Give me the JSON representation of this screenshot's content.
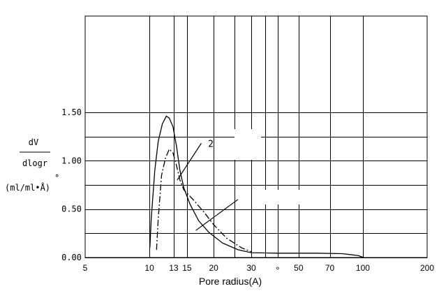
{
  "chart_data": {
    "type": "line",
    "xlabel": "Pore radius(A)",
    "xlabel_ring": "°",
    "ylabel": {
      "numerator": "dV",
      "denominator": "dlogr",
      "unit": "(ml/ml•Å)",
      "unit_ring": "°"
    },
    "x_scale": "log",
    "xlim": [
      5,
      200
    ],
    "ylim": [
      0,
      1.5
    ],
    "x_ticks": [
      {
        "value": 5,
        "label": "5"
      },
      {
        "value": 10,
        "label": "10"
      },
      {
        "value": 13,
        "label": "13"
      },
      {
        "value": 15,
        "label": "15"
      },
      {
        "value": 20,
        "label": "20"
      },
      {
        "value": 30,
        "label": "30"
      },
      {
        "value": 50,
        "label": "50"
      },
      {
        "value": 70,
        "label": "70"
      },
      {
        "value": 100,
        "label": "100"
      },
      {
        "value": 200,
        "label": "200"
      }
    ],
    "y_ticks": [
      {
        "value": 0,
        "label": "0.00"
      },
      {
        "value": 0.5,
        "label": "0.50"
      },
      {
        "value": 1.0,
        "label": "1.00"
      },
      {
        "value": 1.5,
        "label": "1.50"
      }
    ],
    "grid": true,
    "series": [
      {
        "style": "solid",
        "points": [
          [
            10.05,
            0.1
          ],
          [
            10.2,
            0.4
          ],
          [
            10.6,
            0.9
          ],
          [
            11.0,
            1.2
          ],
          [
            11.5,
            1.38
          ],
          [
            12.0,
            1.46
          ],
          [
            12.4,
            1.44
          ],
          [
            12.9,
            1.35
          ],
          [
            13.4,
            1.15
          ],
          [
            13.9,
            0.9
          ],
          [
            14.5,
            0.72
          ],
          [
            15.5,
            0.55
          ],
          [
            17.0,
            0.38
          ],
          [
            19.0,
            0.26
          ],
          [
            22.0,
            0.15
          ],
          [
            26.0,
            0.08
          ],
          [
            30.0,
            0.05
          ],
          [
            40.0,
            0.045
          ],
          [
            60.0,
            0.045
          ],
          [
            80.0,
            0.04
          ],
          [
            95.0,
            0.02
          ],
          [
            101.0,
            0.0
          ]
        ]
      },
      {
        "style": "dash-dot",
        "points": [
          [
            10.8,
            0.08
          ],
          [
            11.0,
            0.4
          ],
          [
            11.4,
            0.85
          ],
          [
            11.9,
            1.03
          ],
          [
            12.4,
            1.12
          ],
          [
            12.9,
            1.08
          ],
          [
            13.4,
            0.95
          ],
          [
            13.9,
            0.8
          ],
          [
            14.5,
            0.7
          ],
          [
            16.0,
            0.6
          ],
          [
            18.0,
            0.47
          ],
          [
            20.0,
            0.34
          ],
          [
            23.0,
            0.2
          ],
          [
            27.0,
            0.1
          ],
          [
            30.0,
            0.06
          ]
        ]
      }
    ],
    "annotations": [
      {
        "text": "2",
        "x": 18.0,
        "y": 1.18,
        "leader_from": [
          13.5,
          0.8
        ],
        "leader_to": [
          17.5,
          1.18
        ]
      },
      {
        "text": "",
        "leader_from": [
          16.5,
          0.28
        ],
        "leader_to": [
          26.0,
          0.6
        ]
      }
    ]
  }
}
